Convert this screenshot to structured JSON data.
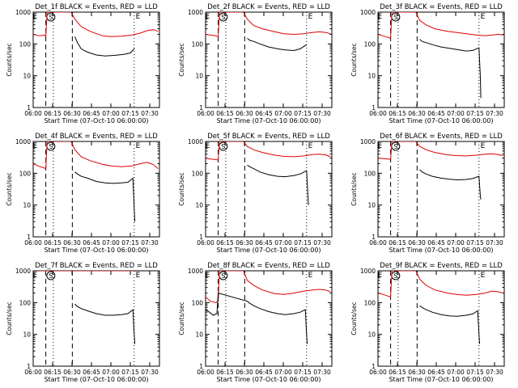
{
  "figure": {
    "ylabel": "Counts/sec",
    "xlabel": "Start Time (07-Oct-10 06:00:00)",
    "legend_note": "BLACK = Events, RED = LLD",
    "colors": {
      "events": "#000000",
      "lld": "#dd0000",
      "axes": "#000000",
      "background": "#ffffff"
    },
    "x_tick_labels": [
      "06:00",
      "06:15",
      "06:30",
      "06:45",
      "07:00",
      "07:15",
      "07:30"
    ],
    "y_tick_labels": [
      "1",
      "10",
      "100",
      "1000"
    ]
  },
  "chart_data": [
    {
      "type": "line",
      "title": "Det_1f BLACK = Events, RED = LLD",
      "xlim": [
        0,
        100
      ],
      "ylim": [
        1,
        1000
      ],
      "yscale": "log",
      "markers": [
        "E",
        "S",
        "E"
      ],
      "series": [
        {
          "name": "RED = LLD",
          "color": "#dd0000",
          "x": [
            0,
            5,
            9,
            10,
            11,
            13,
            15,
            16,
            17,
            30,
            33,
            38,
            45,
            55,
            62,
            70,
            78,
            85,
            90,
            95,
            99
          ],
          "y": [
            200,
            180,
            190,
            170,
            1000,
            1000,
            1000,
            1000,
            1000,
            1000,
            600,
            350,
            250,
            180,
            170,
            175,
            190,
            220,
            260,
            280,
            250
          ]
        },
        {
          "name": "BLACK = Events",
          "color": "#000000",
          "x": [
            33,
            35,
            38,
            43,
            50,
            57,
            65,
            72,
            77,
            80
          ],
          "y": [
            170,
            110,
            70,
            55,
            45,
            42,
            44,
            47,
            52,
            70
          ]
        }
      ]
    },
    {
      "type": "line",
      "title": "Det_2f BLACK = Events, RED = LLD",
      "xlim": [
        0,
        100
      ],
      "ylim": [
        1,
        1000
      ],
      "yscale": "log",
      "markers": [
        "E",
        "S",
        "E"
      ],
      "series": [
        {
          "name": "RED = LLD",
          "color": "#dd0000",
          "x": [
            0,
            4,
            8,
            10,
            11,
            13,
            15,
            17,
            30,
            33,
            38,
            45,
            55,
            62,
            70,
            78,
            85,
            90,
            95,
            99
          ],
          "y": [
            200,
            190,
            180,
            170,
            1000,
            1000,
            1000,
            1000,
            1000,
            600,
            380,
            300,
            240,
            210,
            200,
            210,
            230,
            240,
            230,
            210
          ]
        },
        {
          "name": "BLACK = Events",
          "color": "#000000",
          "x": [
            33,
            35,
            38,
            43,
            50,
            57,
            63,
            70,
            75,
            80
          ],
          "y": [
            150,
            130,
            120,
            100,
            80,
            70,
            65,
            62,
            70,
            95
          ]
        }
      ]
    },
    {
      "type": "line",
      "title": "Det_3f BLACK = Events, RED = LLD",
      "xlim": [
        0,
        100
      ],
      "ylim": [
        1,
        1000
      ],
      "yscale": "log",
      "markers": [
        "E",
        "S",
        "E"
      ],
      "series": [
        {
          "name": "RED = LLD",
          "color": "#dd0000",
          "x": [
            0,
            4,
            8,
            10,
            11,
            13,
            15,
            17,
            30,
            33,
            38,
            45,
            55,
            62,
            70,
            78,
            85,
            90,
            95,
            99
          ],
          "y": [
            200,
            180,
            160,
            150,
            1000,
            1000,
            1000,
            1000,
            1000,
            550,
            400,
            300,
            250,
            230,
            210,
            190,
            180,
            190,
            200,
            190
          ]
        },
        {
          "name": "BLACK = Events",
          "color": "#000000",
          "x": [
            33,
            35,
            38,
            43,
            50,
            57,
            63,
            70,
            75,
            80,
            81,
            81.5
          ],
          "y": [
            140,
            120,
            110,
            95,
            80,
            72,
            66,
            60,
            62,
            75,
            10,
            2
          ]
        }
      ]
    },
    {
      "type": "line",
      "title": "Det_4f BLACK = Events, RED = LLD",
      "xlim": [
        0,
        100
      ],
      "ylim": [
        1,
        1000
      ],
      "yscale": "log",
      "markers": [
        "E",
        "S",
        "E"
      ],
      "series": [
        {
          "name": "RED = LLD",
          "color": "#dd0000",
          "x": [
            0,
            4,
            8,
            10,
            11,
            13,
            15,
            17,
            30,
            33,
            38,
            45,
            55,
            62,
            70,
            78,
            85,
            90,
            95,
            99
          ],
          "y": [
            200,
            170,
            150,
            140,
            1000,
            1000,
            1000,
            1000,
            1000,
            550,
            330,
            250,
            190,
            170,
            160,
            170,
            200,
            220,
            190,
            140
          ]
        },
        {
          "name": "BLACK = Events",
          "color": "#000000",
          "x": [
            33,
            35,
            38,
            43,
            50,
            57,
            63,
            70,
            75,
            79,
            80,
            80.5
          ],
          "y": [
            110,
            95,
            80,
            70,
            55,
            50,
            48,
            50,
            52,
            70,
            8,
            3
          ]
        }
      ]
    },
    {
      "type": "line",
      "title": "Det_5f BLACK = Events, RED = LLD",
      "xlim": [
        0,
        100
      ],
      "ylim": [
        1,
        1000
      ],
      "yscale": "log",
      "markers": [
        "E",
        "S",
        "E"
      ],
      "series": [
        {
          "name": "RED = LLD",
          "color": "#dd0000",
          "x": [
            0,
            4,
            8,
            10,
            11,
            13,
            15,
            17,
            30,
            33,
            38,
            45,
            55,
            62,
            70,
            78,
            85,
            90,
            95,
            99
          ],
          "y": [
            300,
            280,
            270,
            260,
            1000,
            1000,
            1000,
            1000,
            1000,
            700,
            550,
            450,
            370,
            340,
            330,
            350,
            390,
            400,
            380,
            330
          ]
        },
        {
          "name": "BLACK = Events",
          "color": "#000000",
          "x": [
            33,
            35,
            38,
            43,
            50,
            57,
            63,
            70,
            75,
            80,
            81,
            81.5
          ],
          "y": [
            180,
            160,
            140,
            110,
            90,
            80,
            78,
            85,
            95,
            120,
            20,
            10
          ]
        }
      ]
    },
    {
      "type": "line",
      "title": "Det_6f BLACK = Events, RED = LLD",
      "xlim": [
        0,
        100
      ],
      "ylim": [
        1,
        1000
      ],
      "yscale": "log",
      "markers": [
        "E",
        "S",
        "E"
      ],
      "series": [
        {
          "name": "RED = LLD",
          "color": "#dd0000",
          "x": [
            0,
            4,
            8,
            10,
            11,
            13,
            15,
            17,
            30,
            33,
            38,
            45,
            55,
            62,
            70,
            78,
            85,
            90,
            95,
            99
          ],
          "y": [
            300,
            290,
            280,
            270,
            1000,
            1000,
            1000,
            1000,
            1000,
            700,
            550,
            450,
            380,
            360,
            350,
            370,
            400,
            410,
            390,
            360
          ]
        },
        {
          "name": "BLACK = Events",
          "color": "#000000",
          "x": [
            33,
            35,
            38,
            43,
            50,
            57,
            63,
            70,
            75,
            80,
            81,
            81.5
          ],
          "y": [
            130,
            110,
            95,
            80,
            70,
            65,
            62,
            64,
            68,
            80,
            20,
            15
          ]
        }
      ]
    },
    {
      "type": "line",
      "title": "Det_7f BLACK = Events, RED = LLD",
      "xlim": [
        0,
        100
      ],
      "ylim": [
        1,
        1000
      ],
      "yscale": "log",
      "markers": [
        "E",
        "S",
        "E"
      ],
      "series": [
        {
          "name": "RED = LLD",
          "color": "#dd0000",
          "x": [
            4,
            8,
            12,
            15,
            17,
            30,
            35,
            45,
            55,
            65,
            75,
            80
          ],
          "y": [
            1000,
            1000,
            1000,
            1000,
            1000,
            1000,
            1000,
            1000,
            1000,
            1000,
            1000,
            1000
          ]
        },
        {
          "name": "BLACK = Events",
          "color": "#000000",
          "x": [
            33,
            35,
            38,
            43,
            50,
            57,
            63,
            70,
            75,
            79,
            80,
            80.5
          ],
          "y": [
            90,
            75,
            65,
            55,
            45,
            40,
            40,
            42,
            45,
            60,
            10,
            5
          ]
        }
      ]
    },
    {
      "type": "line",
      "title": "Det_8f BLACK = Events, RED = LLD",
      "xlim": [
        0,
        100
      ],
      "ylim": [
        1,
        1000
      ],
      "yscale": "log",
      "markers": [
        "E",
        "S",
        "E"
      ],
      "series": [
        {
          "name": "RED = LLD",
          "color": "#dd0000",
          "x": [
            0,
            4,
            8,
            10,
            11,
            13,
            15,
            17,
            30,
            33,
            38,
            45,
            55,
            62,
            70,
            78,
            85,
            90,
            95,
            99
          ],
          "y": [
            150,
            110,
            100,
            110,
            1000,
            1000,
            1000,
            1000,
            1000,
            500,
            350,
            250,
            190,
            180,
            200,
            230,
            250,
            260,
            250,
            220
          ]
        },
        {
          "name": "BLACK = Events",
          "color": "#000000",
          "x": [
            0,
            3,
            6,
            9,
            10,
            33,
            35,
            38,
            43,
            50,
            57,
            63,
            70,
            75,
            79,
            80,
            80.5
          ],
          "y": [
            60,
            50,
            40,
            45,
            200,
            110,
            95,
            80,
            65,
            52,
            45,
            42,
            45,
            50,
            60,
            10,
            5
          ]
        }
      ]
    },
    {
      "type": "line",
      "title": "Det_9f BLACK = Events, RED = LLD",
      "xlim": [
        0,
        100
      ],
      "ylim": [
        1,
        1000
      ],
      "yscale": "log",
      "markers": [
        "E",
        "S",
        "E"
      ],
      "series": [
        {
          "name": "RED = LLD",
          "color": "#dd0000",
          "x": [
            0,
            4,
            8,
            10,
            11,
            13,
            15,
            17,
            30,
            33,
            38,
            45,
            55,
            62,
            70,
            78,
            85,
            90,
            95,
            99
          ],
          "y": [
            200,
            180,
            160,
            150,
            1000,
            1000,
            1000,
            1000,
            1000,
            550,
            350,
            250,
            200,
            180,
            170,
            180,
            200,
            230,
            220,
            200
          ]
        },
        {
          "name": "BLACK = Events",
          "color": "#000000",
          "x": [
            33,
            35,
            38,
            43,
            50,
            57,
            63,
            70,
            75,
            79,
            80,
            80.5
          ],
          "y": [
            80,
            70,
            60,
            50,
            42,
            38,
            37,
            40,
            44,
            55,
            10,
            5
          ]
        }
      ]
    }
  ]
}
